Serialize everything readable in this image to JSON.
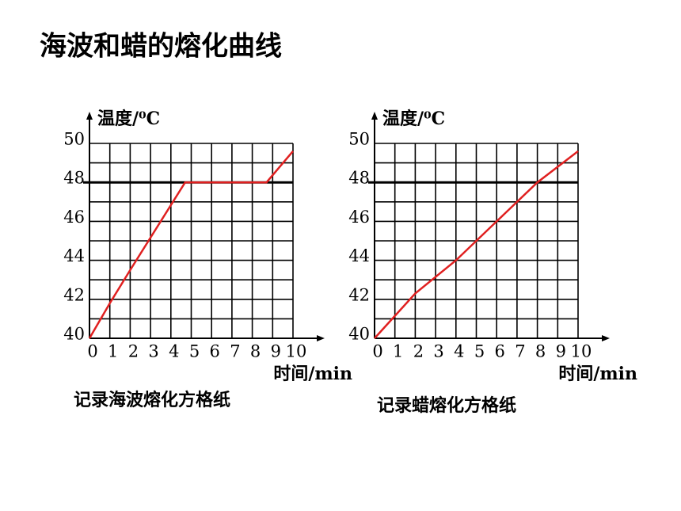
{
  "title": "海波和蜡的熔化曲线",
  "chart_data": [
    {
      "type": "line",
      "ylabel": "温度/⁰C",
      "xlabel": "时间/min",
      "caption": "记录海波熔化方格纸",
      "x": [
        0,
        1,
        2,
        4.7,
        8.7,
        10
      ],
      "values": [
        40,
        41.8,
        43.5,
        48,
        48,
        49.6
      ],
      "color": "#e02020",
      "xlim": [
        0,
        10
      ],
      "xticks": [
        0,
        1,
        2,
        3,
        4,
        5,
        6,
        7,
        8,
        9,
        10
      ],
      "ylim": [
        40,
        50
      ],
      "yticks": [
        40,
        42,
        44,
        46,
        48,
        50
      ],
      "minor_yticks": [
        41,
        43,
        45,
        47,
        49
      ],
      "highlight_y": 48,
      "grid": true
    },
    {
      "type": "line",
      "ylabel": "温度/⁰C",
      "xlabel": "时间/min",
      "caption": "记录蜡熔化方格纸",
      "x": [
        0,
        2,
        4,
        6,
        8,
        10
      ],
      "values": [
        40,
        42.3,
        44,
        46,
        48,
        49.6
      ],
      "color": "#e02020",
      "xlim": [
        0,
        10
      ],
      "xticks": [
        0,
        1,
        2,
        3,
        4,
        5,
        6,
        7,
        8,
        9,
        10
      ],
      "ylim": [
        40,
        50
      ],
      "yticks": [
        40,
        42,
        44,
        46,
        48,
        50
      ],
      "minor_yticks": [
        41,
        43,
        45,
        47,
        49
      ],
      "highlight_y": 48,
      "grid": true
    }
  ]
}
